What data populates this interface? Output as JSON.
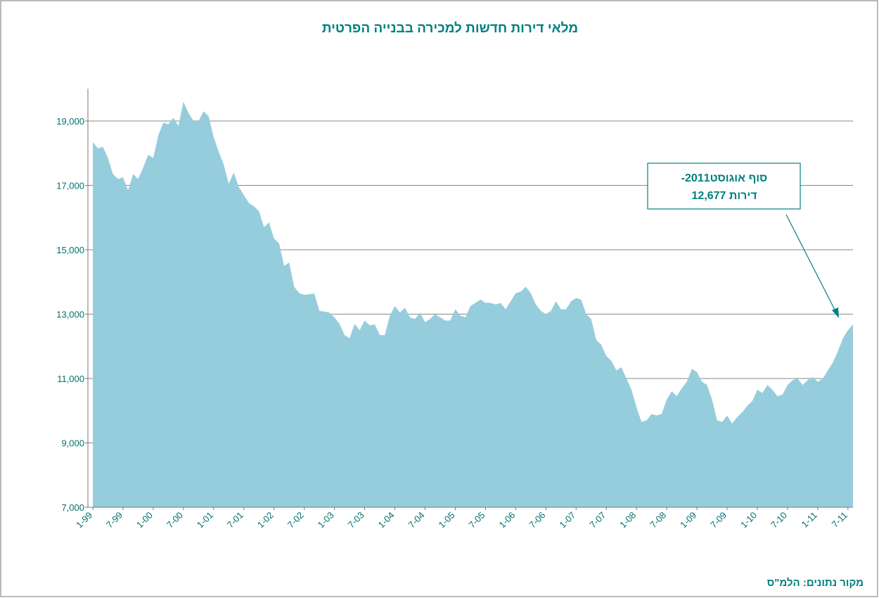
{
  "chart_data": {
    "type": "area",
    "title": "מלאי דירות חדשות למכירה בבנייה הפרטית",
    "source": "מקור נתונים: הלמ\"ס",
    "annotation": [
      "סוף אוגוסט2011-",
      "12,677 דירות"
    ],
    "categories": [
      "1-99",
      null,
      null,
      null,
      null,
      null,
      "7-99",
      null,
      null,
      null,
      null,
      null,
      "1-00",
      null,
      null,
      null,
      null,
      null,
      "7-00",
      null,
      null,
      null,
      null,
      null,
      "1-01",
      null,
      null,
      null,
      null,
      null,
      "7-01",
      null,
      null,
      null,
      null,
      null,
      "1-02",
      null,
      null,
      null,
      null,
      null,
      "7-02",
      null,
      null,
      null,
      null,
      null,
      "1-03",
      null,
      null,
      null,
      null,
      null,
      "7-03",
      null,
      null,
      null,
      null,
      null,
      "1-04",
      null,
      null,
      null,
      null,
      null,
      "7-04",
      null,
      null,
      null,
      null,
      null,
      "1-05",
      null,
      null,
      null,
      null,
      null,
      "7-05",
      null,
      null,
      null,
      null,
      null,
      "1-06",
      null,
      null,
      null,
      null,
      null,
      "7-06",
      null,
      null,
      null,
      null,
      null,
      "1-07",
      null,
      null,
      null,
      null,
      null,
      "7-07",
      null,
      null,
      null,
      null,
      null,
      "1-08",
      null,
      null,
      null,
      null,
      null,
      "7-08",
      null,
      null,
      null,
      null,
      null,
      "1-09",
      null,
      null,
      null,
      null,
      null,
      "7-09",
      null,
      null,
      null,
      null,
      null,
      "1-10",
      null,
      null,
      null,
      null,
      null,
      "7-10",
      null,
      null,
      null,
      null,
      null,
      "1-11",
      null,
      null,
      null,
      null,
      null,
      "7-11",
      null
    ],
    "series": [
      {
        "color": "#96cddc",
        "values": [
          18350,
          18150,
          18200,
          17850,
          17350,
          17200,
          17250,
          16850,
          17350,
          17200,
          17550,
          17950,
          17850,
          18550,
          18950,
          18900,
          19100,
          18850,
          19600,
          19250,
          19000,
          19000,
          19300,
          19150,
          18500,
          18050,
          17650,
          17050,
          17400,
          16950,
          16700,
          16450,
          16350,
          16200,
          15700,
          15850,
          15350,
          15200,
          14500,
          14600,
          13850,
          13650,
          13600,
          13620,
          13640,
          13100,
          13080,
          13050,
          12900,
          12700,
          12350,
          12250,
          12700,
          12500,
          12800,
          12650,
          12680,
          12350,
          12350,
          12950,
          13250,
          13050,
          13200,
          12900,
          12850,
          13050,
          12750,
          12850,
          13000,
          12900,
          12800,
          12800,
          13150,
          12950,
          12900,
          13250,
          13350,
          13450,
          13350,
          13350,
          13300,
          13350,
          13150,
          13400,
          13650,
          13700,
          13850,
          13650,
          13300,
          13100,
          13000,
          13100,
          13400,
          13150,
          13150,
          13400,
          13500,
          13450,
          13000,
          12850,
          12200,
          12050,
          11700,
          11550,
          11250,
          11350,
          11000,
          10650,
          10100,
          9650,
          9700,
          9900,
          9850,
          9900,
          10350,
          10600,
          10450,
          10700,
          10900,
          11300,
          11200,
          10900,
          10800,
          10350,
          9700,
          9650,
          9850,
          9600,
          9800,
          9950,
          10150,
          10300,
          10650,
          10550,
          10800,
          10650,
          10450,
          10500,
          10800,
          10950,
          11000,
          10800,
          10950,
          11050,
          10900,
          11000,
          11250,
          11500,
          11850,
          12250,
          12500,
          12677
        ]
      }
    ],
    "ylim": [
      7000,
      20000
    ],
    "yticks": [
      {
        "value": 7000,
        "label": "7,000"
      },
      {
        "value": 9000,
        "label": "9,000"
      },
      {
        "value": 11000,
        "label": "11,000"
      },
      {
        "value": 13000,
        "label": "13,000"
      },
      {
        "value": 15000,
        "label": "15,000"
      },
      {
        "value": 17000,
        "label": "17,000"
      },
      {
        "value": 19000,
        "label": "19,000"
      }
    ],
    "grid": true
  }
}
